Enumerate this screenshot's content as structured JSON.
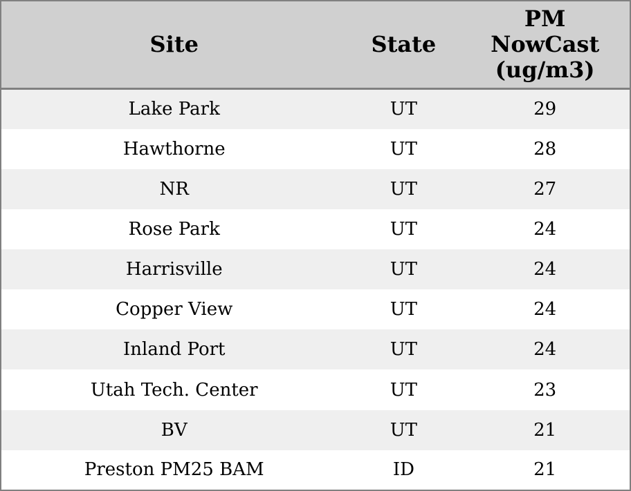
{
  "table": {
    "columns": [
      {
        "label": "Site"
      },
      {
        "label": "State"
      },
      {
        "label": "PM NowCast (ug/m3)",
        "lines": [
          "PM",
          "NowCast",
          "(ug/m3)"
        ]
      }
    ],
    "rows": [
      {
        "site": "Lake Park",
        "state": "UT",
        "pm": "29"
      },
      {
        "site": "Hawthorne",
        "state": "UT",
        "pm": "28"
      },
      {
        "site": "NR",
        "state": "UT",
        "pm": "27"
      },
      {
        "site": "Rose Park",
        "state": "UT",
        "pm": "24"
      },
      {
        "site": "Harrisville",
        "state": "UT",
        "pm": "24"
      },
      {
        "site": "Copper View",
        "state": "UT",
        "pm": "24"
      },
      {
        "site": "Inland Port",
        "state": "UT",
        "pm": "24"
      },
      {
        "site": "Utah Tech. Center",
        "state": "UT",
        "pm": "23"
      },
      {
        "site": "BV",
        "state": "UT",
        "pm": "21"
      },
      {
        "site": "Preston PM25 BAM",
        "state": "ID",
        "pm": "21"
      }
    ]
  },
  "colors": {
    "border": "#808080",
    "header_bg": "#d0d0d0",
    "row_alt_bg": "#efefef",
    "row_bg": "#ffffff",
    "text": "#000000"
  },
  "chart_data": {
    "type": "table",
    "title": "",
    "columns": [
      "Site",
      "State",
      "PM NowCast (ug/m3)"
    ],
    "rows": [
      [
        "Lake Park",
        "UT",
        29
      ],
      [
        "Hawthorne",
        "UT",
        28
      ],
      [
        "NR",
        "UT",
        27
      ],
      [
        "Rose Park",
        "UT",
        24
      ],
      [
        "Harrisville",
        "UT",
        24
      ],
      [
        "Copper View",
        "UT",
        24
      ],
      [
        "Inland Port",
        "UT",
        24
      ],
      [
        "Utah Tech. Center",
        "UT",
        23
      ],
      [
        "BV",
        "UT",
        21
      ],
      [
        "Preston PM25 BAM",
        "ID",
        21
      ]
    ],
    "layout_hints": {
      "header_background": "#d0d0d0",
      "striped_rows": true,
      "stripe_color": "#efefef",
      "alignment": "center"
    }
  }
}
